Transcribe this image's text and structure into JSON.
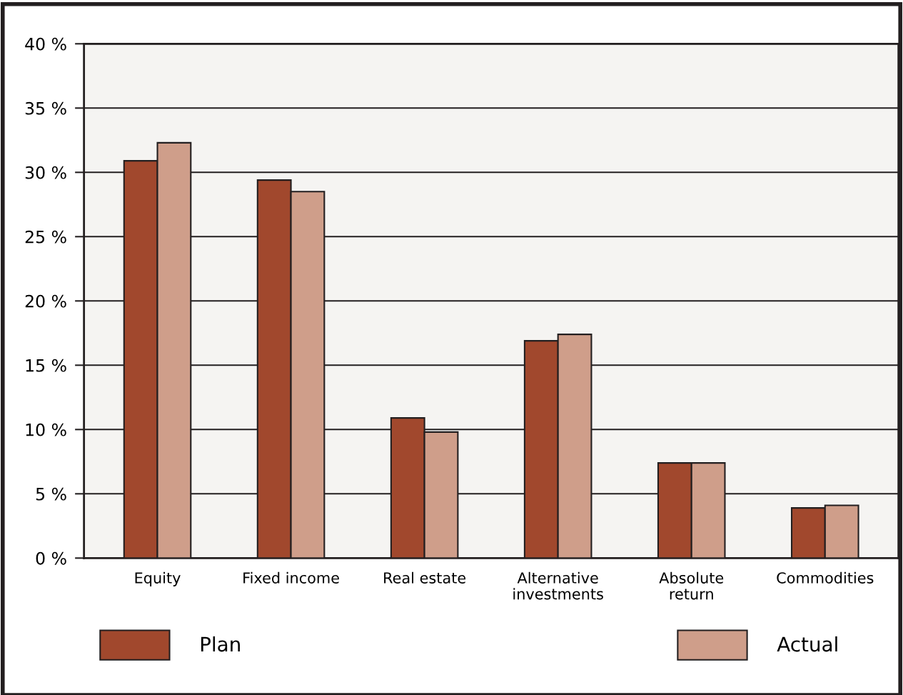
{
  "chart_data": {
    "type": "bar",
    "categories": [
      "Equity",
      "Fixed income",
      "Real estate",
      "Alternative\ninvestments",
      "Absolute\nreturn",
      "Commodities"
    ],
    "series": [
      {
        "name": "Plan",
        "color": "#a1482d",
        "values": [
          30.9,
          29.4,
          10.9,
          16.9,
          7.4,
          3.9
        ]
      },
      {
        "name": "Actual",
        "color": "#cf9e8a",
        "values": [
          32.3,
          28.5,
          9.8,
          17.4,
          7.4,
          4.1
        ]
      }
    ],
    "ylim": [
      0,
      40
    ],
    "yticks": [
      {
        "value": 0,
        "label": "0 %"
      },
      {
        "value": 5,
        "label": "5 %"
      },
      {
        "value": 10,
        "label": "10 %"
      },
      {
        "value": 15,
        "label": "15 %"
      },
      {
        "value": 20,
        "label": "20 %"
      },
      {
        "value": 25,
        "label": "25 %"
      },
      {
        "value": 30,
        "label": "30 %"
      },
      {
        "value": 35,
        "label": "35 %"
      },
      {
        "value": 40,
        "label": "40 %"
      }
    ],
    "grid": "y",
    "legend": "bottom"
  }
}
